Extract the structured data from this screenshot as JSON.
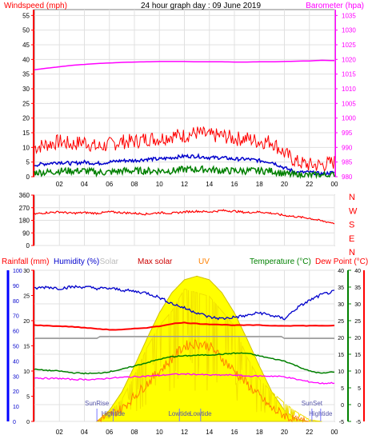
{
  "title": "24 hour graph day : 09 June 2019",
  "colors": {
    "wind_axis": "#ff0000",
    "baro": "#ff00ff",
    "gust": "#ff0000",
    "wind_avg": "#0000cc",
    "wind_speed": "#008000",
    "direction": "#ff0000",
    "humidity": "#0000cc",
    "temperature": "#008000",
    "dewpoint": "#ff0000",
    "rain": "#ff0000",
    "solar": "#ffff00",
    "maxsolar": "#cc0000",
    "uv": "#ff8000",
    "gray": "#9a9a9a",
    "grid": "#e0e0e0",
    "border": "#808080"
  },
  "chart_data": [
    {
      "type": "line",
      "name": "wind-barometer",
      "title": "24 hour graph day : 09 June 2019",
      "ylabel_left": "Windspeed (mph)",
      "ylabel_right": "Barometer (hpa)",
      "x_ticks": [
        "02",
        "04",
        "06",
        "08",
        "10",
        "12",
        "14",
        "16",
        "18",
        "20",
        "22",
        "00"
      ],
      "y_left_ticks": [
        "0",
        "5",
        "10",
        "15",
        "20",
        "25",
        "30",
        "35",
        "40",
        "45",
        "50",
        "55"
      ],
      "y_left_range": [
        0,
        57
      ],
      "y_right_ticks": [
        "980",
        "985",
        "990",
        "995",
        "1000",
        "1005",
        "1010",
        "1015",
        "1020",
        "1025",
        "1030",
        "1035"
      ],
      "y_right_range": [
        980,
        1037
      ],
      "hours": [
        0,
        1,
        2,
        3,
        4,
        5,
        6,
        7,
        8,
        9,
        10,
        11,
        12,
        13,
        14,
        15,
        16,
        17,
        18,
        19,
        20,
        21,
        22,
        23,
        24
      ],
      "series": [
        {
          "key": "barometer",
          "values": [
            1016.5,
            1017.0,
            1017.5,
            1018.0,
            1018.3,
            1018.6,
            1018.8,
            1019.0,
            1019.1,
            1019.2,
            1019.3,
            1019.3,
            1019.3,
            1019.2,
            1019.2,
            1019.2,
            1019.1,
            1019.1,
            1019.2,
            1019.2,
            1019.3,
            1019.4,
            1019.5,
            1019.7,
            1019.6
          ]
        },
        {
          "key": "gust",
          "values": [
            10,
            11,
            12,
            11,
            12,
            10,
            11,
            12,
            12,
            13,
            13,
            14,
            14,
            15,
            14,
            14,
            13,
            13,
            12,
            12,
            8,
            5,
            4,
            4,
            5
          ]
        },
        {
          "key": "average",
          "values": [
            4,
            4.5,
            5,
            4.5,
            5,
            4.5,
            5,
            5.5,
            5.5,
            6,
            6,
            6.5,
            7,
            7,
            6.5,
            6.5,
            6,
            6,
            5.5,
            5,
            3,
            1.5,
            1.5,
            1,
            1.5
          ]
        },
        {
          "key": "speed",
          "values": [
            1.5,
            1.5,
            2,
            2,
            2,
            1.5,
            1.5,
            2,
            2,
            2,
            2,
            2,
            2.5,
            2.5,
            2.5,
            2,
            2,
            2,
            2,
            2,
            1,
            0.5,
            0.5,
            0.5,
            0.5
          ]
        }
      ]
    },
    {
      "type": "line",
      "name": "wind-direction",
      "y_ticks": [
        "0",
        "90",
        "180",
        "270",
        "360"
      ],
      "y_range": [
        0,
        360
      ],
      "right_labels": [
        "N",
        "W",
        "S",
        "E",
        "N"
      ],
      "hours": [
        0,
        1,
        2,
        3,
        4,
        5,
        6,
        7,
        8,
        9,
        10,
        11,
        12,
        13,
        14,
        15,
        16,
        17,
        18,
        19,
        20,
        21,
        22,
        23,
        24
      ],
      "values": [
        225,
        235,
        240,
        230,
        235,
        230,
        240,
        235,
        230,
        225,
        235,
        230,
        240,
        245,
        240,
        250,
        245,
        235,
        240,
        230,
        215,
        205,
        195,
        175,
        160
      ]
    },
    {
      "type": "line",
      "name": "weather-daily",
      "header": {
        "rainfall": "Rainfall (mm)",
        "humidity": "Humidity (%)",
        "solar": "Solar",
        "maxsolar": "Max solar",
        "uv": "UV",
        "temperature": "Temperature (°C)",
        "dewpoint": "Dew Point (°C)"
      },
      "axis_humidity_ticks": [
        "0",
        "10",
        "20",
        "30",
        "40",
        "50",
        "60",
        "70",
        "80",
        "90",
        "100"
      ],
      "axis_humidity_range": [
        0,
        100
      ],
      "axis_rain_ticks": [
        "0",
        "5",
        "10",
        "15",
        "20",
        "25",
        "30"
      ],
      "axis_rain_range": [
        0,
        30
      ],
      "axis_temp_ticks": [
        "-5",
        "0",
        "5",
        "10",
        "15",
        "20",
        "25",
        "30",
        "35",
        "40"
      ],
      "axis_temp_range": [
        -5,
        40
      ],
      "x_ticks": [
        "02",
        "04",
        "06",
        "08",
        "10",
        "12",
        "14",
        "16",
        "18",
        "20",
        "22",
        "00"
      ],
      "events": [
        {
          "label": "SunRise",
          "hour": 5.0
        },
        {
          "label": "Hightide",
          "hour": 6.3
        },
        {
          "label": "Lowtide",
          "hour": 11.6
        },
        {
          "label": "Lowtide",
          "hour": 13.3
        },
        {
          "label": "SunSet",
          "hour": 22.2
        },
        {
          "label": "Hightide",
          "hour": 22.9
        }
      ],
      "hours": [
        0,
        1,
        2,
        3,
        4,
        5,
        6,
        7,
        8,
        9,
        10,
        11,
        12,
        13,
        14,
        15,
        16,
        17,
        18,
        19,
        20,
        21,
        22,
        23,
        24
      ],
      "series": [
        {
          "key": "humidity",
          "values": [
            88,
            89,
            88,
            89,
            89,
            88,
            88,
            87,
            86,
            85,
            82,
            78,
            75,
            72,
            69,
            68,
            69,
            70,
            72,
            70,
            68,
            75,
            80,
            84,
            86
          ]
        },
        {
          "key": "temperature",
          "values": [
            10.5,
            10.2,
            10.0,
            9.5,
            9.3,
            9.3,
            9.8,
            10.5,
            11.5,
            12.5,
            13.5,
            14.3,
            14.5,
            14.7,
            14.8,
            15.0,
            15.3,
            15.3,
            14.5,
            13.7,
            13.0,
            11.5,
            10.0,
            9.3,
            9.8
          ]
        },
        {
          "key": "dewpoint",
          "values": [
            8.0,
            7.8,
            7.8,
            7.5,
            7.5,
            7.5,
            7.9,
            8.1,
            8.3,
            8.5,
            8.7,
            9.0,
            9.1,
            9.0,
            8.8,
            8.8,
            8.8,
            8.5,
            8.5,
            8.5,
            8.3,
            7.5,
            6.8,
            6.3,
            6.5
          ]
        },
        {
          "key": "rain",
          "values": [
            19.1,
            19.0,
            18.9,
            18.8,
            18.6,
            18.4,
            18.2,
            18.2,
            18.4,
            18.6,
            18.9,
            19.4,
            19.6,
            19.4,
            19.3,
            19.2,
            19.1,
            19.1,
            19.1,
            19.0,
            19.0,
            19.0,
            19.0,
            19.0,
            19.0
          ]
        },
        {
          "key": "solar",
          "hours": [
            5,
            6,
            7,
            8,
            9,
            10,
            11,
            12,
            13,
            14,
            15,
            16,
            17,
            18,
            19,
            20,
            21,
            22,
            23
          ],
          "values": [
            0,
            50,
            120,
            250,
            400,
            520,
            600,
            720,
            700,
            680,
            600,
            520,
            350,
            230,
            160,
            100,
            50,
            10,
            0
          ]
        },
        {
          "key": "maxsolar",
          "hours": [
            5,
            6,
            7,
            8,
            9,
            10,
            11,
            12,
            13,
            14,
            15,
            16,
            17,
            18,
            19,
            20,
            21,
            22,
            23
          ],
          "values": [
            0,
            60,
            160,
            300,
            450,
            590,
            700,
            770,
            790,
            770,
            700,
            590,
            450,
            300,
            160,
            60,
            10,
            0,
            0
          ]
        },
        {
          "key": "uv",
          "hours": [
            5,
            6,
            7,
            8,
            9,
            10,
            11,
            12,
            13,
            14,
            15,
            16,
            17,
            18,
            19,
            20,
            21,
            22
          ],
          "values": [
            0,
            0.5,
            1,
            2,
            3,
            4,
            5,
            6,
            6.2,
            6,
            5,
            4,
            3,
            2,
            1,
            0.5,
            0,
            0
          ]
        }
      ]
    }
  ]
}
